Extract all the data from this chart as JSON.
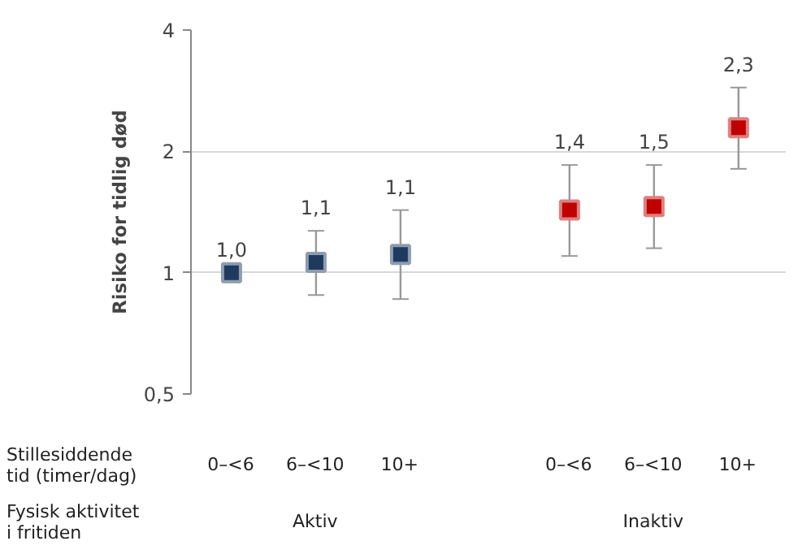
{
  "chart_data": {
    "type": "scatter",
    "ylabel": "Risiko for tidlig død",
    "categories": [
      "0–<6",
      "6–<10",
      "10+",
      null,
      "0–<6",
      "6–<10",
      "10+"
    ],
    "values": [
      1.0,
      1.06,
      1.11,
      null,
      1.43,
      1.46,
      2.29
    ],
    "colors": [
      "#1f3a5f",
      "#1f3a5f",
      "#1f3a5f",
      null,
      "#c00000",
      "#c00000",
      "#c00000"
    ],
    "errors": [
      null,
      [
        0.88,
        1.27
      ],
      [
        0.86,
        1.43
      ],
      null,
      [
        1.1,
        1.85
      ],
      [
        1.15,
        1.85
      ],
      [
        1.81,
        2.88
      ]
    ],
    "value_labels": [
      "1,0",
      "1,1",
      "1,1",
      null,
      "1,4",
      "1,5",
      "2,3"
    ],
    "annotations": [
      "Stillesiddende tid (timer/dag)",
      "Fysisk aktivitet i fritiden",
      "Aktiv",
      "Inaktiv"
    ],
    "log": true,
    "ylim": [
      0.5,
      4
    ],
    "yticks": [
      {
        "value": 0.5,
        "label": "0,5"
      },
      1,
      2,
      4
    ],
    "grid": "y",
    "marker": "square"
  }
}
